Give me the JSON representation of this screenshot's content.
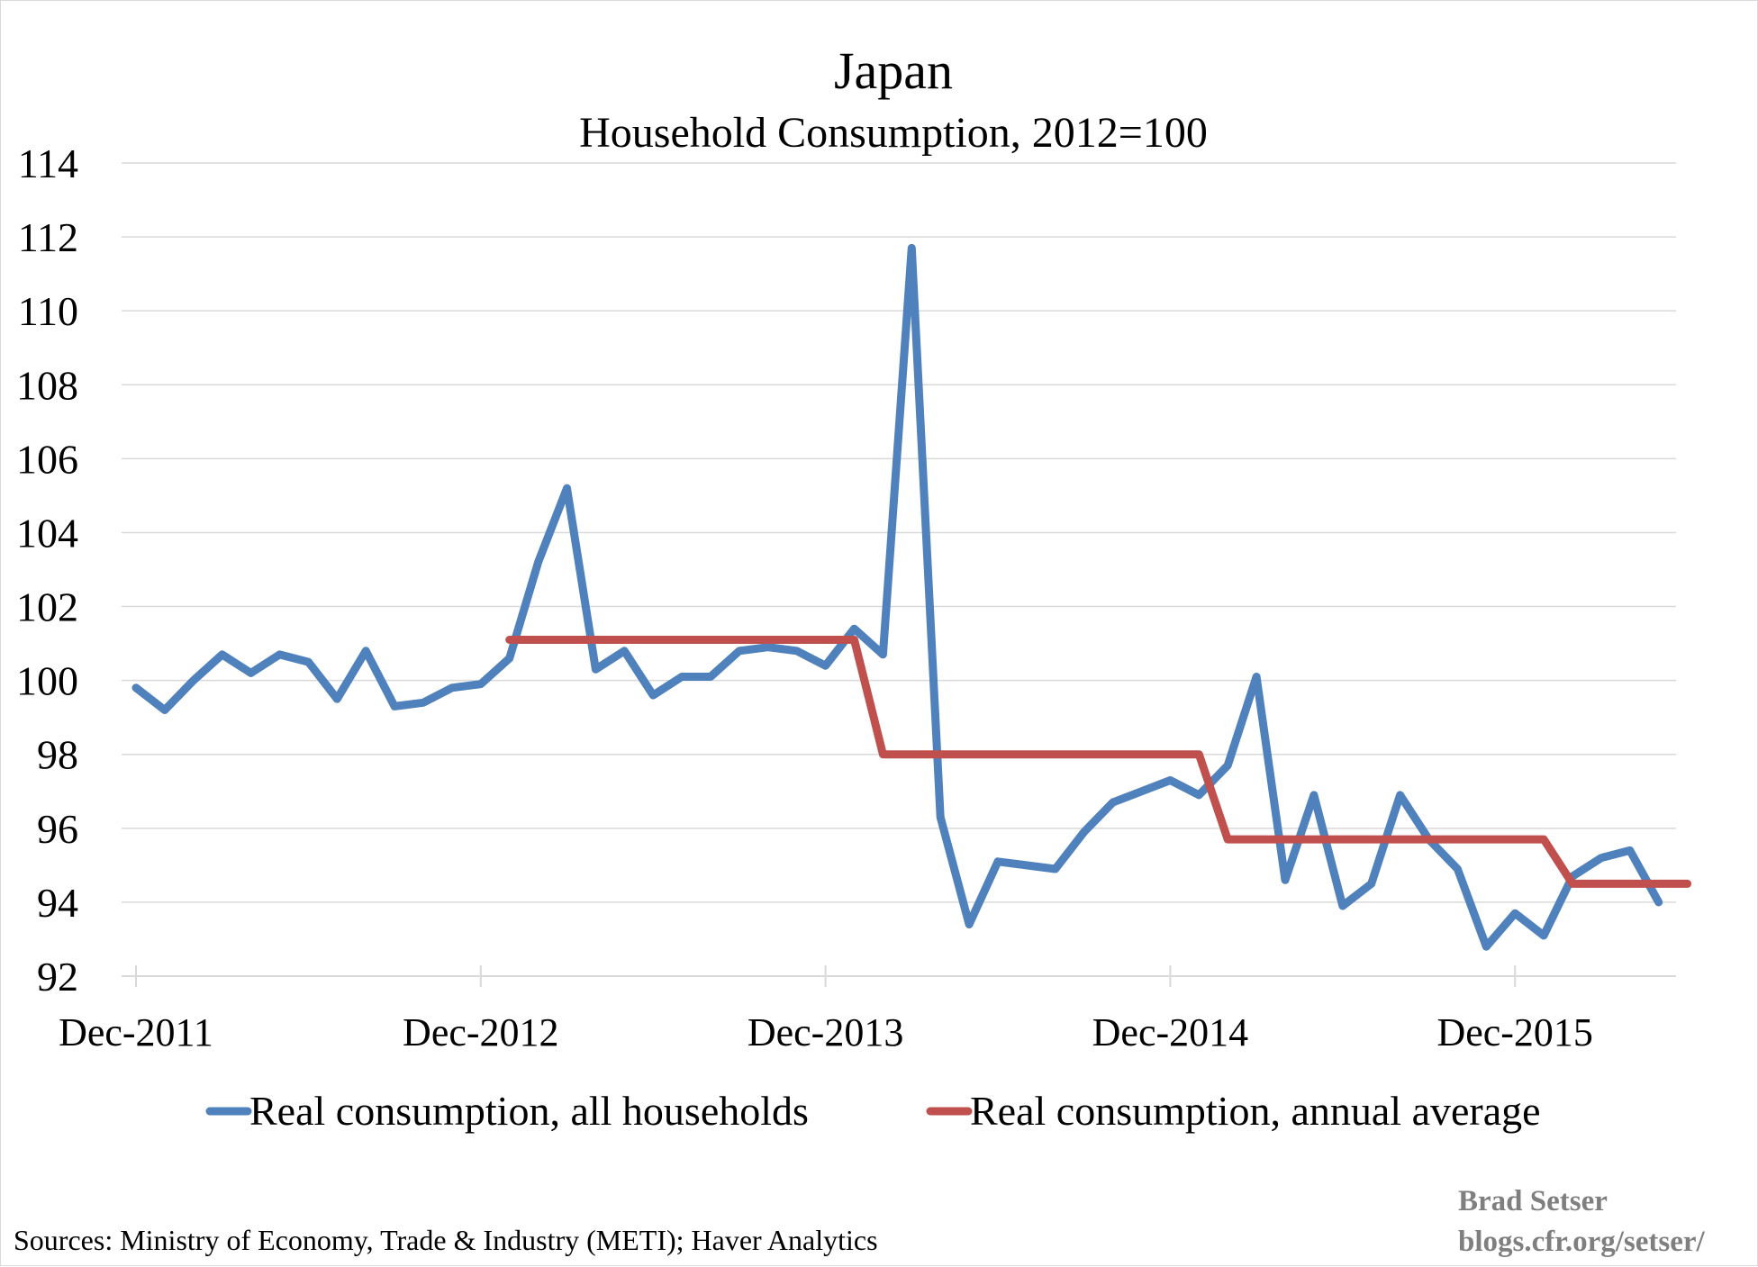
{
  "chart_data": {
    "type": "line",
    "title": "Japan",
    "subtitle": "Household Consumption, 2012=100",
    "xlabel": "",
    "ylabel": "",
    "ylim": [
      92,
      114
    ],
    "yticks": [
      "92",
      "94",
      "96",
      "98",
      "100",
      "102",
      "104",
      "106",
      "108",
      "110",
      "112",
      "114"
    ],
    "xticks": [
      "Dec-2011",
      "Dec-2012",
      "Dec-2013",
      "Dec-2014",
      "Dec-2015"
    ],
    "x": [
      "2011-12",
      "2012-01",
      "2012-02",
      "2012-03",
      "2012-04",
      "2012-05",
      "2012-06",
      "2012-07",
      "2012-08",
      "2012-09",
      "2012-10",
      "2012-11",
      "2012-12",
      "2013-01",
      "2013-02",
      "2013-03",
      "2013-04",
      "2013-05",
      "2013-06",
      "2013-07",
      "2013-08",
      "2013-09",
      "2013-10",
      "2013-11",
      "2013-12",
      "2014-01",
      "2014-02",
      "2014-03",
      "2014-04",
      "2014-05",
      "2014-06",
      "2014-07",
      "2014-08",
      "2014-09",
      "2014-10",
      "2014-11",
      "2014-12",
      "2015-01",
      "2015-02",
      "2015-03",
      "2015-04",
      "2015-05",
      "2015-06",
      "2015-07",
      "2015-08",
      "2015-09",
      "2015-10",
      "2015-11",
      "2015-12",
      "2016-01",
      "2016-02",
      "2016-03",
      "2016-04",
      "2016-05",
      "2016-06"
    ],
    "series": [
      {
        "name": "Real consumption, all households",
        "color": "#4f81bd",
        "values": [
          99.8,
          99.2,
          100.0,
          100.7,
          100.2,
          100.7,
          100.5,
          99.5,
          100.8,
          99.3,
          99.4,
          99.8,
          99.9,
          100.6,
          103.2,
          105.2,
          100.3,
          100.8,
          99.6,
          100.1,
          100.1,
          100.8,
          100.9,
          100.8,
          100.4,
          101.4,
          100.7,
          111.7,
          96.3,
          93.4,
          95.1,
          95.0,
          94.9,
          95.9,
          96.7,
          97.0,
          97.3,
          96.9,
          97.7,
          100.1,
          94.6,
          96.9,
          93.9,
          94.5,
          96.9,
          95.7,
          94.9,
          92.8,
          93.7,
          93.1,
          94.7,
          95.2,
          95.4,
          94.0,
          null
        ]
      },
      {
        "name": "Real consumption, annual average",
        "color": "#c0504d",
        "values": [
          null,
          null,
          null,
          null,
          null,
          null,
          null,
          null,
          null,
          null,
          null,
          null,
          null,
          101.1,
          101.1,
          101.1,
          101.1,
          101.1,
          101.1,
          101.1,
          101.1,
          101.1,
          101.1,
          101.1,
          101.1,
          101.1,
          98.0,
          98.0,
          98.0,
          98.0,
          98.0,
          98.0,
          98.0,
          98.0,
          98.0,
          98.0,
          98.0,
          98.0,
          95.7,
          95.7,
          95.7,
          95.7,
          95.7,
          95.7,
          95.7,
          95.7,
          95.7,
          95.7,
          95.7,
          95.7,
          94.5,
          94.5,
          94.5,
          94.5,
          94.5
        ]
      }
    ],
    "grid": true,
    "legend_position": "bottom"
  },
  "footer": {
    "sources": "Sources: Ministry of Economy, Trade & Industry (METI); Haver Analytics",
    "credit_line1": "Brad Setser",
    "credit_line2": "blogs.cfr.org/setser/"
  }
}
